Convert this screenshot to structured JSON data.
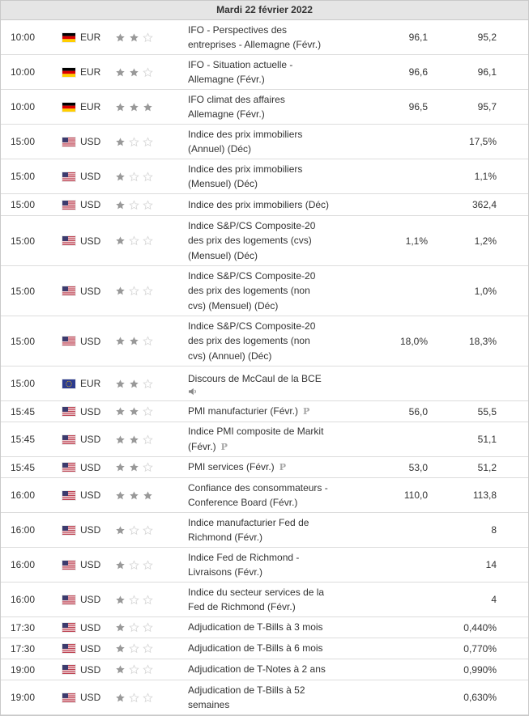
{
  "day_header": "Mardi 22 février 2022",
  "rows": [
    {
      "time": "10:00",
      "flag": "de",
      "currency": "EUR",
      "importance": 2,
      "event": [
        "IFO - Perspectives des",
        "entreprises - Allemagne (Févr.)"
      ],
      "actual": "96,1",
      "previous": "95,2",
      "h": 43
    },
    {
      "time": "10:00",
      "flag": "de",
      "currency": "EUR",
      "importance": 2,
      "event": [
        "IFO - Situation actuelle -",
        "Allemagne (Févr.)"
      ],
      "actual": "96,6",
      "previous": "96,1",
      "h": 43
    },
    {
      "time": "10:00",
      "flag": "de",
      "currency": "EUR",
      "importance": 3,
      "event": [
        "IFO climat des affaires",
        "Allemagne (Févr.)"
      ],
      "actual": "96,5",
      "previous": "95,7",
      "h": 43
    },
    {
      "time": "15:00",
      "flag": "us",
      "currency": "USD",
      "importance": 1,
      "event": [
        "Indice des prix immobiliers",
        "(Annuel) (Déc)"
      ],
      "actual": "",
      "previous": "17,5%",
      "h": 43
    },
    {
      "time": "15:00",
      "flag": "us",
      "currency": "USD",
      "importance": 1,
      "event": [
        "Indice des prix immobiliers",
        "(Mensuel) (Déc)"
      ],
      "actual": "",
      "previous": "1,1%",
      "h": 43
    },
    {
      "time": "15:00",
      "flag": "us",
      "currency": "USD",
      "importance": 1,
      "event": [
        "Indice des prix immobiliers (Déc)"
      ],
      "actual": "",
      "previous": "362,4",
      "h": 27
    },
    {
      "time": "15:00",
      "flag": "us",
      "currency": "USD",
      "importance": 1,
      "event": [
        "Indice S&P/CS Composite-20",
        "des prix des logements (cvs)",
        "(Mensuel) (Déc)"
      ],
      "actual": "1,1%",
      "previous": "1,2%",
      "h": 62
    },
    {
      "time": "15:00",
      "flag": "us",
      "currency": "USD",
      "importance": 1,
      "event": [
        "Indice S&P/CS Composite-20",
        "des prix des logements (non",
        "cvs) (Mensuel) (Déc)"
      ],
      "actual": "",
      "previous": "1,0%",
      "h": 62
    },
    {
      "time": "15:00",
      "flag": "us",
      "currency": "USD",
      "importance": 2,
      "event": [
        "Indice S&P/CS Composite-20",
        "des prix des logements (non",
        "cvs) (Annuel) (Déc)"
      ],
      "actual": "18,0%",
      "previous": "18,3%",
      "h": 62
    },
    {
      "time": "15:00",
      "flag": "eu",
      "currency": "EUR",
      "importance": 2,
      "event": [
        "Discours de McCaul de la BCE"
      ],
      "speech": true,
      "actual": "",
      "previous": "",
      "h": 43
    },
    {
      "time": "15:45",
      "flag": "us",
      "currency": "USD",
      "importance": 2,
      "event": [
        "PMI manufacturier (Févr.)"
      ],
      "pre": true,
      "actual": "56,0",
      "previous": "55,5",
      "h": 26
    },
    {
      "time": "15:45",
      "flag": "us",
      "currency": "USD",
      "importance": 2,
      "event": [
        "Indice PMI composite de Markit",
        "(Févr.)"
      ],
      "pre": true,
      "actual": "",
      "previous": "51,1",
      "h": 43
    },
    {
      "time": "15:45",
      "flag": "us",
      "currency": "USD",
      "importance": 2,
      "event": [
        "PMI services (Févr.)"
      ],
      "pre": true,
      "actual": "53,0",
      "previous": "51,2",
      "h": 26
    },
    {
      "time": "16:00",
      "flag": "us",
      "currency": "USD",
      "importance": 3,
      "event": [
        "Confiance des consommateurs -",
        "Conference Board (Févr.)"
      ],
      "actual": "110,0",
      "previous": "113,8",
      "h": 43
    },
    {
      "time": "16:00",
      "flag": "us",
      "currency": "USD",
      "importance": 1,
      "event": [
        "Indice manufacturier Fed de",
        "Richmond (Févr.)"
      ],
      "actual": "",
      "previous": "8",
      "h": 43
    },
    {
      "time": "16:00",
      "flag": "us",
      "currency": "USD",
      "importance": 1,
      "event": [
        "Indice Fed de Richmond -",
        "Livraisons (Févr.)"
      ],
      "actual": "",
      "previous": "14",
      "h": 43
    },
    {
      "time": "16:00",
      "flag": "us",
      "currency": "USD",
      "importance": 1,
      "event": [
        "Indice du secteur services de la",
        "Fed de Richmond (Févr.)"
      ],
      "actual": "",
      "previous": "4",
      "h": 43
    },
    {
      "time": "17:30",
      "flag": "us",
      "currency": "USD",
      "importance": 1,
      "event": [
        "Adjudication de T-Bills à 3 mois"
      ],
      "actual": "",
      "previous": "0,440%",
      "h": 26
    },
    {
      "time": "17:30",
      "flag": "us",
      "currency": "USD",
      "importance": 1,
      "event": [
        "Adjudication de T-Bills à 6 mois"
      ],
      "actual": "",
      "previous": "0,770%",
      "h": 26
    },
    {
      "time": "19:00",
      "flag": "us",
      "currency": "USD",
      "importance": 1,
      "event": [
        "Adjudication de T-Notes à 2 ans"
      ],
      "actual": "",
      "previous": "0,990%",
      "h": 26
    },
    {
      "time": "19:00",
      "flag": "us",
      "currency": "USD",
      "importance": 1,
      "event": [
        "Adjudication de T-Bills à 52",
        "semaines"
      ],
      "actual": "",
      "previous": "0,630%",
      "h": 43
    }
  ],
  "colors": {
    "star_on": "#999999",
    "star_off": "#d7d7d7",
    "header_bg": "#e5e5e5",
    "row_border": "#dcdcdc"
  }
}
